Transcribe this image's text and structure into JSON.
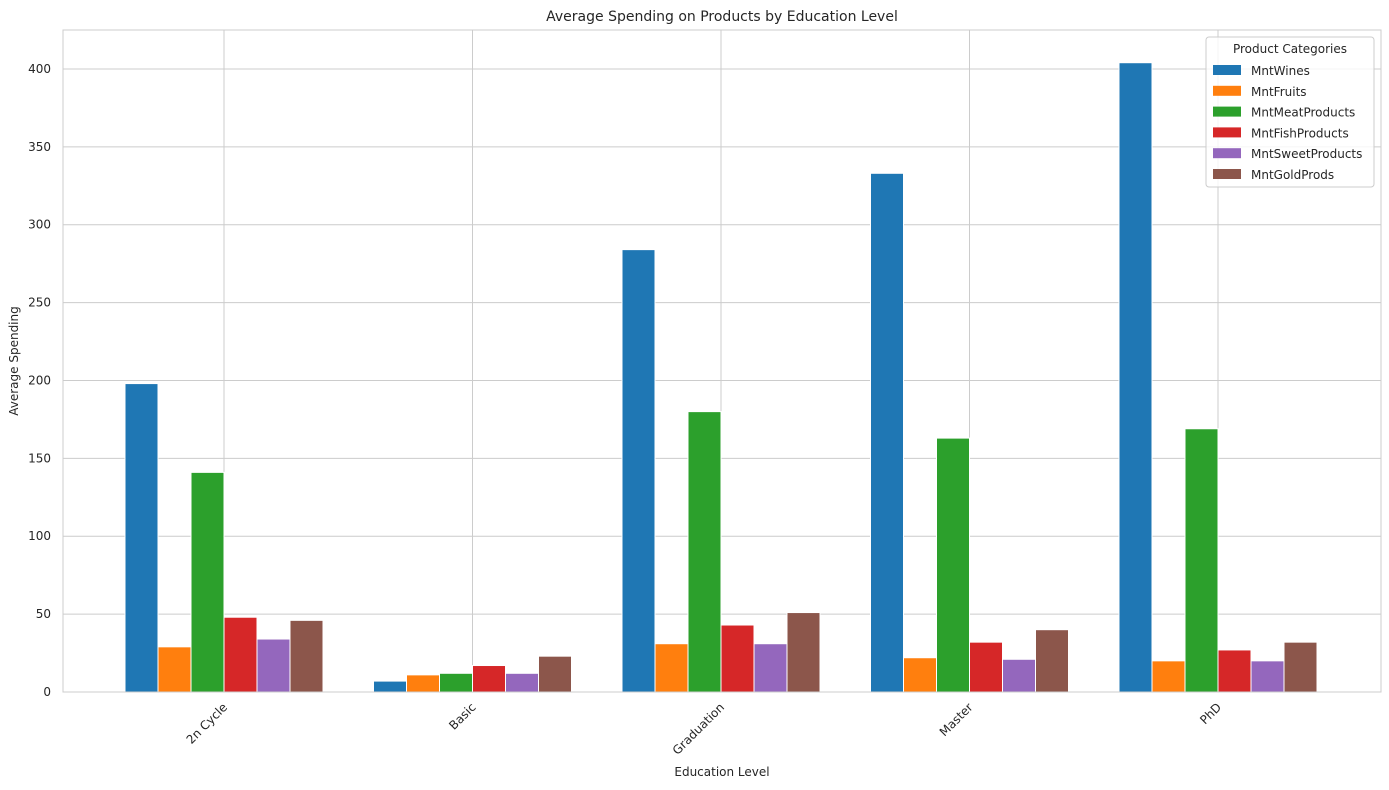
{
  "chart_data": {
    "type": "bar",
    "title": "Average Spending on Products by Education Level",
    "xlabel": "Education Level",
    "ylabel": "Average Spending",
    "ylim": [
      0,
      425
    ],
    "yticks": [
      0,
      50,
      100,
      150,
      200,
      250,
      300,
      350,
      400
    ],
    "categories": [
      "2n Cycle",
      "Basic",
      "Graduation",
      "Master",
      "PhD"
    ],
    "legend_title": "Product Categories",
    "legend_position": "top-right",
    "grid": true,
    "series": [
      {
        "name": "MntWines",
        "color": "#1f77b4",
        "values": [
          198,
          7,
          284,
          333,
          404
        ]
      },
      {
        "name": "MntFruits",
        "color": "#ff7f0e",
        "values": [
          29,
          11,
          31,
          22,
          20
        ]
      },
      {
        "name": "MntMeatProducts",
        "color": "#2ca02c",
        "values": [
          141,
          12,
          180,
          163,
          169
        ]
      },
      {
        "name": "MntFishProducts",
        "color": "#d62728",
        "values": [
          48,
          17,
          43,
          32,
          27
        ]
      },
      {
        "name": "MntSweetProducts",
        "color": "#9467bd",
        "values": [
          34,
          12,
          31,
          21,
          20
        ]
      },
      {
        "name": "MntGoldProds",
        "color": "#8c564b",
        "values": [
          46,
          23,
          51,
          40,
          32
        ]
      }
    ]
  }
}
